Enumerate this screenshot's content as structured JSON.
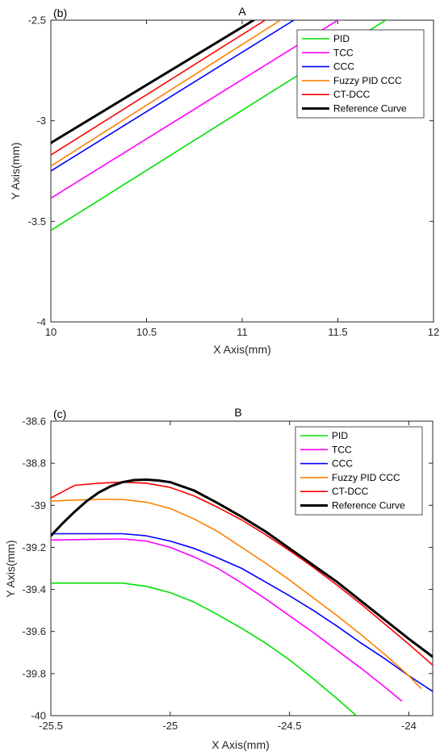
{
  "chart_data": [
    {
      "type": "line",
      "panel_label": "(b)",
      "title": "A",
      "xlabel": "X Axis(mm)",
      "ylabel": "Y Axis(mm)",
      "xlim": [
        10,
        12
      ],
      "ylim": [
        -4,
        -2.5
      ],
      "xticks": [
        "10",
        "10.5",
        "11",
        "11.5",
        "12"
      ],
      "yticks": [
        "-4",
        "-3.5",
        "-3",
        "-2.5"
      ],
      "legend_position": "top-right",
      "grid": false,
      "series": [
        {
          "name": "PID",
          "color": "#00e000",
          "x": [
            10,
            11.75
          ],
          "y": [
            -3.545,
            -2.5
          ]
        },
        {
          "name": "TCC",
          "color": "#ff00ff",
          "x": [
            10,
            11.5
          ],
          "y": [
            -3.385,
            -2.5
          ]
        },
        {
          "name": "CCC",
          "color": "#0000ff",
          "x": [
            10,
            11.27
          ],
          "y": [
            -3.25,
            -2.5
          ]
        },
        {
          "name": "Fuzzy PID CCC",
          "color": "#ff8000",
          "x": [
            10,
            11.2
          ],
          "y": [
            -3.225,
            -2.5
          ]
        },
        {
          "name": "CT-DCC",
          "color": "#ff0000",
          "x": [
            10,
            11.12
          ],
          "y": [
            -3.17,
            -2.5
          ]
        },
        {
          "name": "Reference Curve",
          "color": "#000000",
          "x": [
            10,
            11.06
          ],
          "y": [
            -3.11,
            -2.5
          ]
        }
      ]
    },
    {
      "type": "line",
      "panel_label": "(c)",
      "title": "B",
      "xlabel": "X Axis(mm)",
      "ylabel": "Y Axis(mm)",
      "xlim": [
        -25.5,
        -23.9
      ],
      "ylim": [
        -40,
        -38.6
      ],
      "xticks": [
        "-25.5",
        "-25",
        "-24.5",
        "-24"
      ],
      "xtick_values": [
        -25.5,
        -25,
        -24.5,
        -24
      ],
      "yticks": [
        "-40",
        "-39.8",
        "-39.6",
        "-39.4",
        "-39.2",
        "-39",
        "-38.8",
        "-38.6"
      ],
      "legend_position": "top-right",
      "grid": false,
      "series": [
        {
          "name": "PID",
          "color": "#00e000",
          "x": [
            -25.5,
            -25.2,
            -25.1,
            -25.0,
            -24.9,
            -24.8,
            -24.7,
            -24.6,
            -24.5,
            -24.4,
            -24.3,
            -24.22
          ],
          "y": [
            -39.37,
            -39.37,
            -39.385,
            -39.415,
            -39.46,
            -39.52,
            -39.585,
            -39.655,
            -39.735,
            -39.825,
            -39.92,
            -40.0
          ]
        },
        {
          "name": "TCC",
          "color": "#ff00ff",
          "x": [
            -25.5,
            -25.2,
            -25.1,
            -25.0,
            -24.9,
            -24.8,
            -24.7,
            -24.6,
            -24.5,
            -24.4,
            -24.3,
            -24.2,
            -24.1,
            -24.03
          ],
          "y": [
            -39.165,
            -39.16,
            -39.17,
            -39.2,
            -39.245,
            -39.3,
            -39.37,
            -39.445,
            -39.525,
            -39.605,
            -39.69,
            -39.775,
            -39.865,
            -39.93
          ]
        },
        {
          "name": "CCC",
          "color": "#0000ff",
          "x": [
            -25.5,
            -25.2,
            -25.1,
            -25.0,
            -24.9,
            -24.8,
            -24.7,
            -24.6,
            -24.5,
            -24.4,
            -24.3,
            -24.2,
            -24.1,
            -24.0,
            -23.9
          ],
          "y": [
            -39.135,
            -39.135,
            -39.145,
            -39.17,
            -39.205,
            -39.25,
            -39.3,
            -39.365,
            -39.43,
            -39.5,
            -39.575,
            -39.655,
            -39.73,
            -39.81,
            -39.885
          ]
        },
        {
          "name": "Fuzzy PID CCC",
          "color": "#ff8000",
          "x": [
            -25.5,
            -25.4,
            -25.3,
            -25.2,
            -25.1,
            -25.0,
            -24.9,
            -24.8,
            -24.7,
            -24.6,
            -24.5,
            -24.4,
            -24.3,
            -24.2,
            -24.1,
            -24.0,
            -23.95
          ],
          "y": [
            -38.98,
            -38.975,
            -38.972,
            -38.972,
            -38.985,
            -39.015,
            -39.065,
            -39.125,
            -39.2,
            -39.275,
            -39.355,
            -39.44,
            -39.525,
            -39.615,
            -39.71,
            -39.81,
            -39.87
          ]
        },
        {
          "name": "CT-DCC",
          "color": "#ff0000",
          "x": [
            -25.5,
            -25.45,
            -25.4,
            -25.3,
            -25.2,
            -25.1,
            -25.0,
            -24.9,
            -24.8,
            -24.7,
            -24.6,
            -24.5,
            -24.4,
            -24.3,
            -24.2,
            -24.1,
            -24.0,
            -23.9
          ],
          "y": [
            -38.965,
            -38.935,
            -38.905,
            -38.895,
            -38.89,
            -38.895,
            -38.915,
            -38.955,
            -39.01,
            -39.07,
            -39.14,
            -39.215,
            -39.295,
            -39.38,
            -39.47,
            -39.565,
            -39.66,
            -39.76
          ]
        },
        {
          "name": "Reference Curve",
          "color": "#000000",
          "x": [
            -25.5,
            -25.45,
            -25.4,
            -25.35,
            -25.3,
            -25.25,
            -25.2,
            -25.15,
            -25.1,
            -25.05,
            -25.0,
            -24.9,
            -24.8,
            -24.7,
            -24.6,
            -24.5,
            -24.4,
            -24.3,
            -24.2,
            -24.1,
            -24.0,
            -23.9
          ],
          "y": [
            -39.145,
            -39.085,
            -39.03,
            -38.98,
            -38.94,
            -38.91,
            -38.89,
            -38.88,
            -38.878,
            -38.882,
            -38.89,
            -38.93,
            -38.99,
            -39.055,
            -39.125,
            -39.205,
            -39.285,
            -39.365,
            -39.455,
            -39.545,
            -39.635,
            -39.72
          ]
        }
      ]
    }
  ]
}
